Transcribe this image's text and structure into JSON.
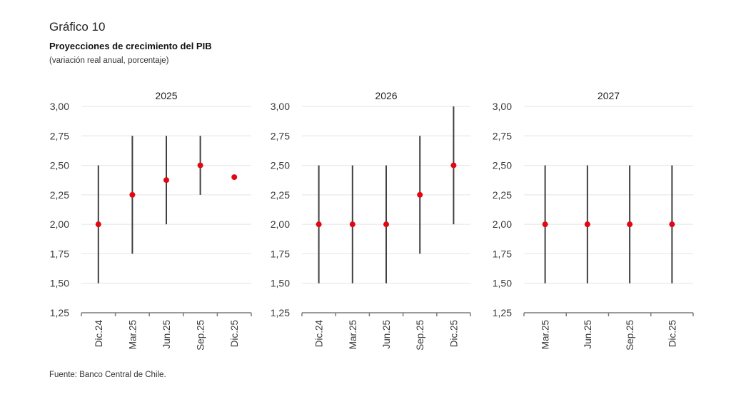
{
  "header": {
    "number": "Gráfico 10",
    "title": "Proyecciones de crecimiento del PIB",
    "subtitle": "(variación real anual, porcentaje)"
  },
  "source": "Fuente: Banco Central de Chile.",
  "colors": {
    "point": "#e30613",
    "range": "#404040",
    "grid": "#e4e4e4",
    "axis": "#7a7a7a"
  },
  "chart_data": [
    {
      "type": "scatter",
      "subtype": "range-with-point",
      "title": "2025",
      "categories": [
        "Dic.24",
        "Mar.25",
        "Jun.25",
        "Sep.25",
        "Dic.25"
      ],
      "point": [
        2.0,
        2.25,
        2.375,
        2.5,
        2.4
      ],
      "low": [
        1.5,
        1.75,
        2.0,
        2.25,
        null
      ],
      "high": [
        2.5,
        2.75,
        2.75,
        2.75,
        null
      ],
      "ylim": [
        1.25,
        3.0
      ],
      "yticks": [
        "1,25",
        "1,50",
        "1,75",
        "2,00",
        "2,25",
        "2,50",
        "2,75",
        "3,00"
      ],
      "grid": true
    },
    {
      "type": "scatter",
      "subtype": "range-with-point",
      "title": "2026",
      "categories": [
        "Dic.24",
        "Mar.25",
        "Jun.25",
        "Sep.25",
        "Dic.25"
      ],
      "point": [
        2.0,
        2.0,
        2.0,
        2.25,
        2.5
      ],
      "low": [
        1.5,
        1.5,
        1.5,
        1.75,
        2.0
      ],
      "high": [
        2.5,
        2.5,
        2.5,
        2.75,
        3.0
      ],
      "ylim": [
        1.25,
        3.0
      ],
      "yticks": [
        "1,25",
        "1,50",
        "1,75",
        "2,00",
        "2,25",
        "2,50",
        "2,75",
        "3,00"
      ],
      "grid": true
    },
    {
      "type": "scatter",
      "subtype": "range-with-point",
      "title": "2027",
      "categories": [
        "Mar.25",
        "Jun.25",
        "Sep.25",
        "Dic.25"
      ],
      "point": [
        2.0,
        2.0,
        2.0,
        2.0
      ],
      "low": [
        1.5,
        1.5,
        1.5,
        1.5
      ],
      "high": [
        2.5,
        2.5,
        2.5,
        2.5
      ],
      "ylim": [
        1.25,
        3.0
      ],
      "yticks": [
        "1,25",
        "1,50",
        "1,75",
        "2,00",
        "2,25",
        "2,50",
        "2,75",
        "3,00"
      ],
      "grid": true
    }
  ]
}
